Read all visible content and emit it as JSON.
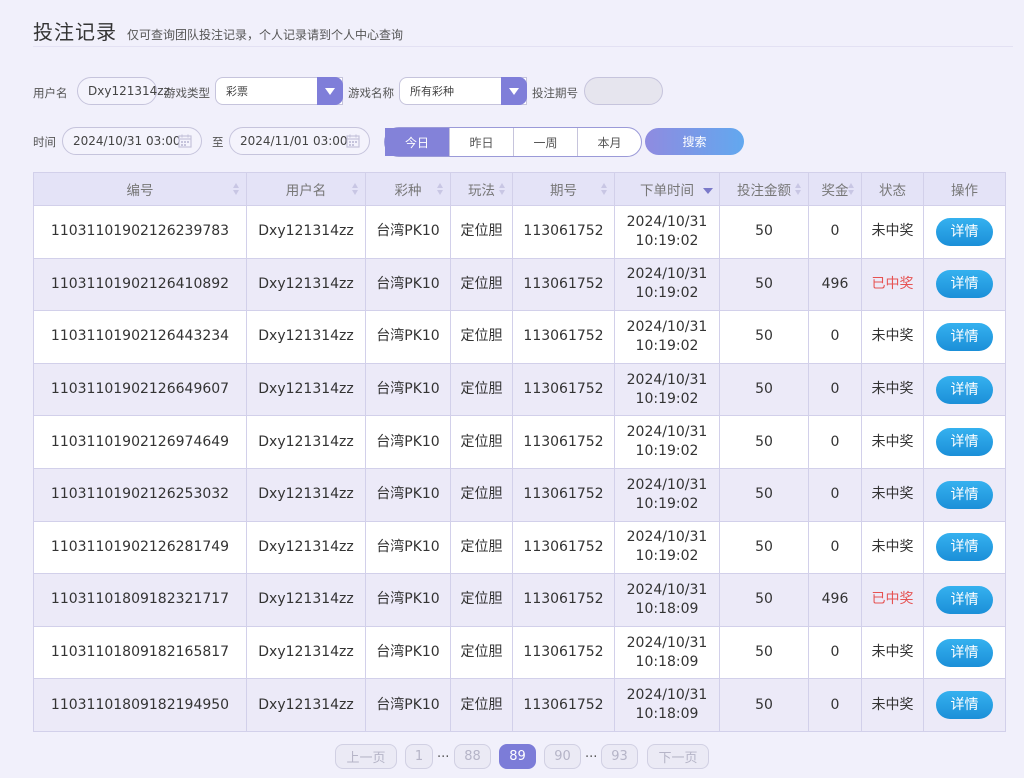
{
  "header": {
    "title": "投注记录",
    "subtitle": "仅可查询团队投注记录，个人记录请到个人中心查询"
  },
  "filters": {
    "username_label": "用户名",
    "username_value": "Dxy121314zz",
    "game_type_label": "游戏类型",
    "game_type_value": "彩票",
    "game_name_label": "游戏名称",
    "game_name_value": "所有彩种",
    "issue_label": "投注期号",
    "issue_value": "",
    "time_label": "时间",
    "start_time": "2024/10/31 03:00",
    "to_label": "至",
    "end_time": "2024/11/01 03:00",
    "ranges": [
      "今日",
      "昨日",
      "一周",
      "本月"
    ],
    "active_range": "今日",
    "search_label": "搜索"
  },
  "table": {
    "columns": [
      "编号",
      "用户名",
      "彩种",
      "玩法",
      "期号",
      "下单时间",
      "投注金额",
      "奖金",
      "状态",
      "操作"
    ],
    "detail_label": "详情",
    "rows": [
      {
        "id": "11031101902126239783",
        "user": "Dxy121314zz",
        "lottery": "台湾PK10",
        "play": "定位胆",
        "issue": "113061752",
        "date": "2024/10/31",
        "time": "10:19:02",
        "amount": "50",
        "prize": "0",
        "status": "未中奖",
        "win": false
      },
      {
        "id": "11031101902126410892",
        "user": "Dxy121314zz",
        "lottery": "台湾PK10",
        "play": "定位胆",
        "issue": "113061752",
        "date": "2024/10/31",
        "time": "10:19:02",
        "amount": "50",
        "prize": "496",
        "status": "已中奖",
        "win": true
      },
      {
        "id": "11031101902126443234",
        "user": "Dxy121314zz",
        "lottery": "台湾PK10",
        "play": "定位胆",
        "issue": "113061752",
        "date": "2024/10/31",
        "time": "10:19:02",
        "amount": "50",
        "prize": "0",
        "status": "未中奖",
        "win": false
      },
      {
        "id": "11031101902126649607",
        "user": "Dxy121314zz",
        "lottery": "台湾PK10",
        "play": "定位胆",
        "issue": "113061752",
        "date": "2024/10/31",
        "time": "10:19:02",
        "amount": "50",
        "prize": "0",
        "status": "未中奖",
        "win": false
      },
      {
        "id": "11031101902126974649",
        "user": "Dxy121314zz",
        "lottery": "台湾PK10",
        "play": "定位胆",
        "issue": "113061752",
        "date": "2024/10/31",
        "time": "10:19:02",
        "amount": "50",
        "prize": "0",
        "status": "未中奖",
        "win": false
      },
      {
        "id": "11031101902126253032",
        "user": "Dxy121314zz",
        "lottery": "台湾PK10",
        "play": "定位胆",
        "issue": "113061752",
        "date": "2024/10/31",
        "time": "10:19:02",
        "amount": "50",
        "prize": "0",
        "status": "未中奖",
        "win": false
      },
      {
        "id": "11031101902126281749",
        "user": "Dxy121314zz",
        "lottery": "台湾PK10",
        "play": "定位胆",
        "issue": "113061752",
        "date": "2024/10/31",
        "time": "10:19:02",
        "amount": "50",
        "prize": "0",
        "status": "未中奖",
        "win": false
      },
      {
        "id": "11031101809182321717",
        "user": "Dxy121314zz",
        "lottery": "台湾PK10",
        "play": "定位胆",
        "issue": "113061752",
        "date": "2024/10/31",
        "time": "10:18:09",
        "amount": "50",
        "prize": "496",
        "status": "已中奖",
        "win": true
      },
      {
        "id": "11031101809182165817",
        "user": "Dxy121314zz",
        "lottery": "台湾PK10",
        "play": "定位胆",
        "issue": "113061752",
        "date": "2024/10/31",
        "time": "10:18:09",
        "amount": "50",
        "prize": "0",
        "status": "未中奖",
        "win": false
      },
      {
        "id": "11031101809182194950",
        "user": "Dxy121314zz",
        "lottery": "台湾PK10",
        "play": "定位胆",
        "issue": "113061752",
        "date": "2024/10/31",
        "time": "10:18:09",
        "amount": "50",
        "prize": "0",
        "status": "未中奖",
        "win": false
      }
    ]
  },
  "pagination": {
    "prev_label": "上一页",
    "next_label": "下一页",
    "first": "1",
    "before": "88",
    "current": "89",
    "after": "90",
    "last": "93",
    "ellipsis": "..."
  },
  "colors": {
    "accent": "#7c7cd8",
    "win": "#e65252",
    "detail_button": "#1b8fd8"
  }
}
